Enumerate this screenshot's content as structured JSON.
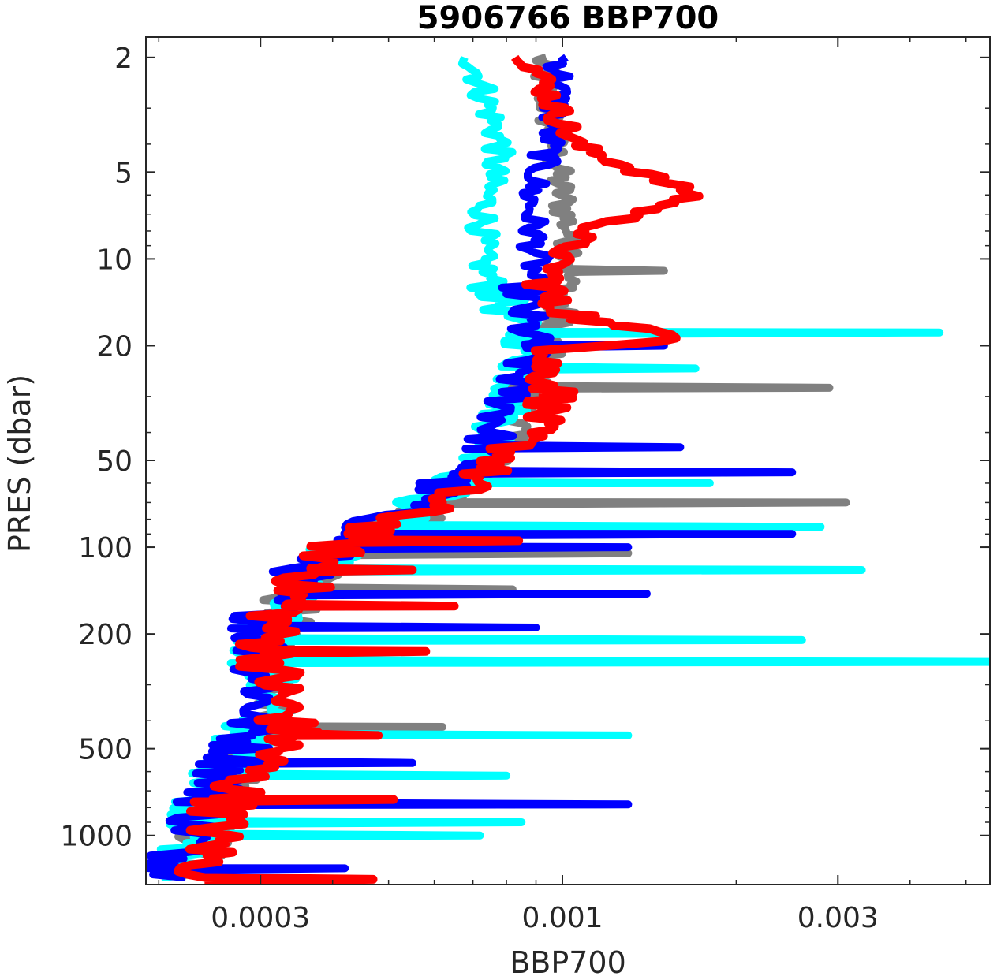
{
  "chart_data": {
    "type": "line",
    "title": "5906766 BBP700",
    "xlabel": "BBP700",
    "ylabel": "PRES (dbar)",
    "x_scale": "log",
    "y_scale": "log",
    "y_reversed": true,
    "xlim": [
      0.00019,
      0.0055
    ],
    "ylim": [
      1.7,
      1480
    ],
    "x_ticks": [
      0.0003,
      0.001,
      0.003
    ],
    "x_tick_labels": [
      "0.0003",
      "0.001",
      "0.003"
    ],
    "y_ticks": [
      2,
      5,
      10,
      20,
      50,
      100,
      200,
      500,
      1000
    ],
    "y_tick_labels": [
      "2",
      "5",
      "10",
      "20",
      "50",
      "100",
      "200",
      "500",
      "1000"
    ],
    "grid": false,
    "legend": "none",
    "colors": {
      "gray": "#808080",
      "cyan": "#00ffff",
      "blue": "#0000ff",
      "red": "#ff0000"
    },
    "series": [
      {
        "color": "gray",
        "profile": [
          [
            2,
            0.00092
          ],
          [
            5,
            0.00098
          ],
          [
            10,
            0.00105
          ],
          [
            20,
            0.00092
          ],
          [
            30,
            0.00085
          ],
          [
            50,
            0.00078
          ],
          [
            70,
            0.00062
          ],
          [
            100,
            0.00044
          ],
          [
            150,
            0.00034
          ],
          [
            200,
            0.00032
          ],
          [
            300,
            0.00032
          ],
          [
            500,
            0.00029
          ],
          [
            700,
            0.00026
          ],
          [
            1000,
            0.00024
          ],
          [
            1400,
            0.00023
          ]
        ],
        "spikes": [
          [
            11,
            0.0015
          ],
          [
            28,
            0.0029
          ],
          [
            70,
            0.0031
          ],
          [
            105,
            0.0013
          ],
          [
            140,
            0.00082
          ],
          [
            160,
            0.00051
          ],
          [
            420,
            0.00062
          ]
        ]
      },
      {
        "color": "cyan",
        "profile": [
          [
            2,
            0.0007
          ],
          [
            4,
            0.00078
          ],
          [
            6,
            0.00074
          ],
          [
            10,
            0.00072
          ],
          [
            15,
            0.0008
          ],
          [
            20,
            0.00088
          ],
          [
            30,
            0.00082
          ],
          [
            50,
            0.00074
          ],
          [
            70,
            0.00058
          ],
          [
            100,
            0.00042
          ],
          [
            150,
            0.00033
          ],
          [
            200,
            0.0003
          ],
          [
            300,
            0.00031
          ],
          [
            500,
            0.00028
          ],
          [
            700,
            0.00025
          ],
          [
            1000,
            0.00023
          ],
          [
            1400,
            0.00022
          ]
        ],
        "spikes": [
          [
            18,
            0.0045
          ],
          [
            24,
            0.0017
          ],
          [
            60,
            0.0018
          ],
          [
            85,
            0.0028
          ],
          [
            120,
            0.0033
          ],
          [
            210,
            0.0026
          ],
          [
            250,
            0.0055
          ],
          [
            450,
            0.0013
          ],
          [
            620,
            0.0008
          ],
          [
            900,
            0.00085
          ],
          [
            1000,
            0.00072
          ]
        ]
      },
      {
        "color": "blue",
        "profile": [
          [
            2,
            0.001
          ],
          [
            4,
            0.00095
          ],
          [
            6,
            0.00088
          ],
          [
            10,
            0.0009
          ],
          [
            15,
            0.00085
          ],
          [
            20,
            0.00088
          ],
          [
            30,
            0.00082
          ],
          [
            50,
            0.00072
          ],
          [
            70,
            0.00056
          ],
          [
            100,
            0.0004
          ],
          [
            150,
            0.00032
          ],
          [
            200,
            0.0003
          ],
          [
            300,
            0.00031
          ],
          [
            500,
            0.00028
          ],
          [
            700,
            0.00025
          ],
          [
            1000,
            0.00023
          ],
          [
            1400,
            0.00021
          ]
        ],
        "spikes": [
          [
            20,
            0.0015
          ],
          [
            45,
            0.0016
          ],
          [
            55,
            0.0025
          ],
          [
            90,
            0.0025
          ],
          [
            100,
            0.0013
          ],
          [
            145,
            0.0014
          ],
          [
            190,
            0.0009
          ],
          [
            560,
            0.00055
          ],
          [
            780,
            0.0013
          ],
          [
            1300,
            0.00042
          ]
        ]
      },
      {
        "color": "red",
        "profile": [
          [
            2,
            0.00088
          ],
          [
            4,
            0.00105
          ],
          [
            6,
            0.0017
          ],
          [
            8,
            0.0011
          ],
          [
            10,
            0.00098
          ],
          [
            14,
            0.00094
          ],
          [
            17,
            0.00118
          ],
          [
            19,
            0.0018
          ],
          [
            21,
            0.00092
          ],
          [
            30,
            0.00098
          ],
          [
            50,
            0.00079
          ],
          [
            70,
            0.0006
          ],
          [
            100,
            0.00041
          ],
          [
            150,
            0.00034
          ],
          [
            200,
            0.00031
          ],
          [
            300,
            0.00032
          ],
          [
            450,
            0.00034
          ],
          [
            600,
            0.00029
          ],
          [
            800,
            0.00026
          ],
          [
            1000,
            0.00025
          ],
          [
            1400,
            0.00024
          ]
        ],
        "spikes": [
          [
            95,
            0.00084
          ],
          [
            120,
            0.00055
          ],
          [
            160,
            0.00065
          ],
          [
            230,
            0.00058
          ],
          [
            450,
            0.00048
          ],
          [
            750,
            0.00051
          ],
          [
            1420,
            0.00047
          ]
        ]
      }
    ]
  }
}
